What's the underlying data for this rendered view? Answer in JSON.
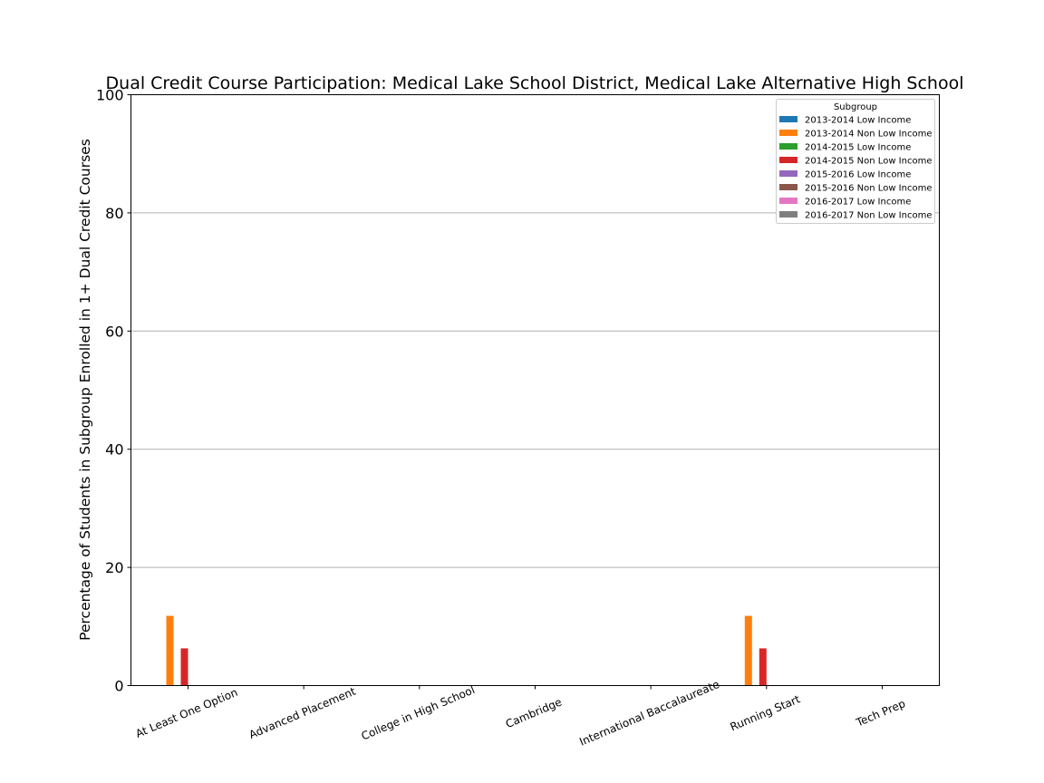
{
  "chart_data": {
    "type": "bar",
    "title": "Dual Credit Course Participation: Medical Lake School District, Medical Lake Alternative High School",
    "xlabel": "",
    "ylabel": "Percentage of Students in Subgroup Enrolled in 1+ Dual Credit Courses",
    "ylim": [
      0,
      100
    ],
    "yticks": [
      "0",
      "20",
      "40",
      "60",
      "80",
      "100"
    ],
    "grid": "horizontal",
    "legend_title": "Subgroup",
    "legend_position": "upper-right",
    "categories": [
      "At Least One Option",
      "Advanced Placement",
      "College in High School",
      "Cambridge",
      "International Baccalaureate",
      "Running Start",
      "Tech Prep"
    ],
    "series": [
      {
        "name": "2013-2014 Low Income",
        "color": "#1f77b4",
        "values": [
          0,
          0,
          0,
          0,
          0,
          0,
          0
        ]
      },
      {
        "name": "2013-2014 Non Low Income",
        "color": "#ff7f0e",
        "values": [
          11.8,
          0,
          0,
          0,
          0,
          11.8,
          0
        ]
      },
      {
        "name": "2014-2015 Low Income",
        "color": "#2ca02c",
        "values": [
          0,
          0,
          0,
          0,
          0,
          0,
          0
        ]
      },
      {
        "name": "2014-2015 Non Low Income",
        "color": "#d62728",
        "values": [
          6.3,
          0,
          0,
          0,
          0,
          6.3,
          0
        ]
      },
      {
        "name": "2015-2016 Low Income",
        "color": "#9467bd",
        "values": [
          0,
          0,
          0,
          0,
          0,
          0,
          0
        ]
      },
      {
        "name": "2015-2016 Non Low Income",
        "color": "#8c564b",
        "values": [
          0,
          0,
          0,
          0,
          0,
          0,
          0
        ]
      },
      {
        "name": "2016-2017 Low Income",
        "color": "#e377c2",
        "values": [
          0,
          0,
          0,
          0,
          0,
          0,
          0
        ]
      },
      {
        "name": "2016-2017 Non Low Income",
        "color": "#7f7f7f",
        "values": [
          0,
          0,
          0,
          0,
          0,
          0,
          0
        ]
      }
    ]
  }
}
